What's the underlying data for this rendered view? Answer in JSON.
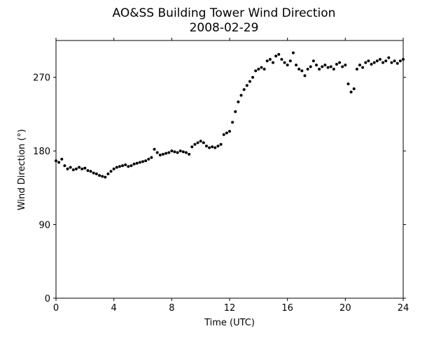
{
  "chart_data": {
    "type": "scatter",
    "title": "AO&SS Building Tower Wind Direction",
    "subtitle": "2008-02-29",
    "x_label": "Time (UTC)",
    "y_label": "Wind Direction (°)",
    "color": "#000000",
    "xlim": [
      0,
      24
    ],
    "xticks": [
      0,
      4,
      8,
      12,
      16,
      20,
      24
    ],
    "ylim": [
      0,
      315
    ],
    "yticks": [
      0,
      90,
      180,
      270
    ],
    "grid": false,
    "series": [
      {
        "name": "Wind Direction",
        "color": "#000000",
        "x": [
          0,
          0.2,
          0.4,
          0.6,
          0.8,
          1,
          1.2,
          1.4,
          1.6,
          1.8,
          2,
          2.2,
          2.4,
          2.6,
          2.8,
          3,
          3.2,
          3.4,
          3.6,
          3.8,
          4,
          4.2,
          4.4,
          4.6,
          4.8,
          5,
          5.2,
          5.4,
          5.6,
          5.8,
          6,
          6.2,
          6.4,
          6.6,
          6.8,
          7,
          7.2,
          7.4,
          7.6,
          7.8,
          8,
          8.2,
          8.4,
          8.6,
          8.8,
          9,
          9.2,
          9.4,
          9.6,
          9.8,
          10,
          10.2,
          10.4,
          10.6,
          10.8,
          11,
          11.2,
          11.4,
          11.6,
          11.8,
          12,
          12.2,
          12.4,
          12.6,
          12.8,
          13,
          13.2,
          13.4,
          13.6,
          13.8,
          14,
          14.2,
          14.4,
          14.6,
          14.8,
          15,
          15.2,
          15.4,
          15.6,
          15.8,
          16,
          16.2,
          16.4,
          16.6,
          16.8,
          17,
          17.2,
          17.4,
          17.6,
          17.8,
          18,
          18.2,
          18.4,
          18.6,
          18.8,
          19,
          19.2,
          19.4,
          19.6,
          19.8,
          20,
          20.2,
          20.4,
          20.6,
          20.8,
          21,
          21.2,
          21.4,
          21.6,
          21.8,
          22,
          22.2,
          22.4,
          22.6,
          22.8,
          23,
          23.2,
          23.4,
          23.6,
          23.8,
          24
        ],
        "values": [
          168,
          166,
          170,
          162,
          158,
          160,
          157,
          158,
          160,
          158,
          159,
          156,
          155,
          153,
          152,
          150,
          149,
          148,
          152,
          155,
          158,
          160,
          161,
          162,
          163,
          161,
          162,
          164,
          165,
          166,
          167,
          168,
          170,
          172,
          182,
          178,
          175,
          176,
          177,
          178,
          180,
          179,
          178,
          180,
          179,
          178,
          176,
          185,
          188,
          190,
          192,
          190,
          186,
          184,
          185,
          184,
          186,
          188,
          200,
          202,
          204,
          215,
          228,
          240,
          248,
          255,
          260,
          265,
          270,
          278,
          280,
          282,
          280,
          290,
          292,
          288,
          296,
          298,
          292,
          288,
          285,
          290,
          300,
          285,
          280,
          278,
          272,
          280,
          283,
          290,
          285,
          280,
          283,
          285,
          282,
          283,
          280,
          286,
          288,
          283,
          285,
          262,
          252,
          256,
          280,
          285,
          282,
          288,
          290,
          286,
          288,
          290,
          292,
          288,
          290,
          294,
          288,
          290,
          287,
          290,
          292
        ]
      }
    ]
  }
}
